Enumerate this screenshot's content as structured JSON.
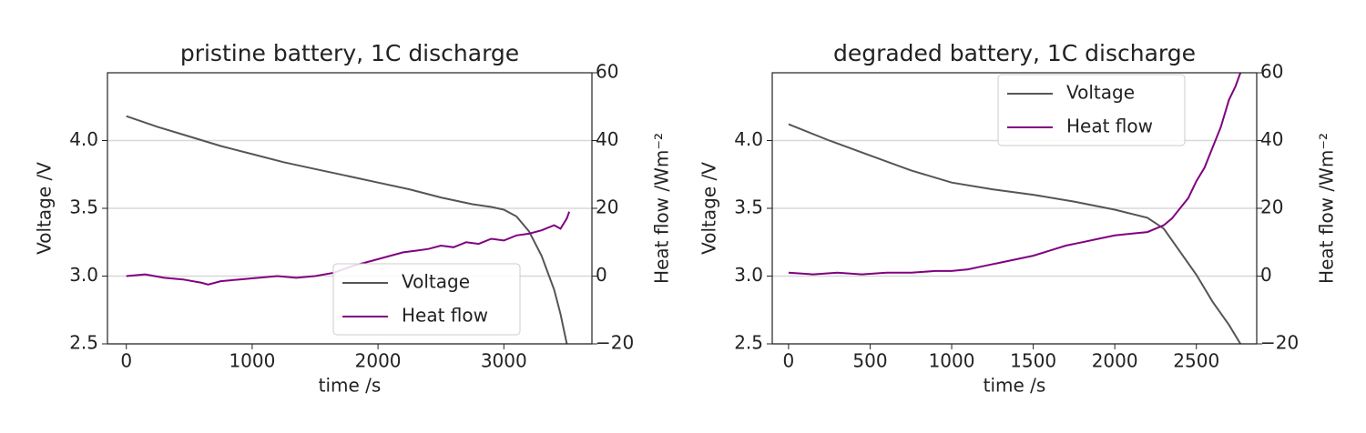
{
  "chart_data": [
    {
      "type": "line",
      "title": "pristine battery, 1C discharge",
      "x_label": "time /s",
      "y_label": "Voltage /V",
      "y2_label": "Heat flow /Wm⁻²",
      "xlim": [
        -150,
        3700
      ],
      "xticks": [
        0,
        1000,
        2000,
        3000
      ],
      "ylim": [
        2.5,
        4.5
      ],
      "yticks": [
        2.5,
        {
          "value": 3,
          "label": "3.0"
        },
        3.5,
        {
          "value": 4,
          "label": "4.0"
        }
      ],
      "y2lim": [
        -20,
        60
      ],
      "y2ticks": [
        {
          "value": -20,
          "label": "−20"
        },
        0,
        20,
        40,
        60
      ],
      "grid": true,
      "legend": "lower right",
      "series": [
        {
          "name": "Voltage",
          "color": "#555555",
          "x": [
            0,
            250,
            500,
            750,
            1000,
            1250,
            1500,
            1750,
            2000,
            2250,
            2500,
            2750,
            2900,
            3000,
            3100,
            3200,
            3300,
            3400,
            3450,
            3500
          ],
          "values": [
            4.18,
            4.1,
            4.03,
            3.96,
            3.9,
            3.84,
            3.79,
            3.74,
            3.69,
            3.64,
            3.58,
            3.53,
            3.51,
            3.49,
            3.44,
            3.33,
            3.15,
            2.9,
            2.72,
            2.5
          ]
        },
        {
          "name": "Heat flow",
          "color": "#800080",
          "axis": "y2",
          "x": [
            0,
            150,
            300,
            450,
            600,
            650,
            750,
            900,
            1050,
            1200,
            1350,
            1500,
            1650,
            1800,
            1900,
            2000,
            2100,
            2200,
            2300,
            2400,
            2500,
            2600,
            2700,
            2800,
            2900,
            3000,
            3100,
            3200,
            3300,
            3400,
            3450,
            3500,
            3520
          ],
          "values": [
            0,
            0.5,
            -0.5,
            -1,
            -2,
            -2.5,
            -1.5,
            -1,
            -0.5,
            0,
            -0.5,
            0,
            1,
            3,
            4,
            5,
            6,
            7,
            7.5,
            8,
            9,
            8.5,
            10,
            9.5,
            11,
            10.5,
            12,
            12.5,
            13.5,
            15,
            14,
            17,
            19
          ]
        }
      ]
    },
    {
      "type": "line",
      "title": "degraded battery, 1C discharge",
      "x_label": "time /s",
      "y_label": "Voltage /V",
      "y2_label": "Heat flow /Wm⁻²",
      "xlim": [
        -100,
        2870
      ],
      "xticks": [
        0,
        500,
        1000,
        1500,
        2000,
        2500
      ],
      "ylim": [
        2.5,
        4.5
      ],
      "yticks": [
        2.5,
        {
          "value": 3,
          "label": "3.0"
        },
        3.5,
        {
          "value": 4,
          "label": "4.0"
        }
      ],
      "y2lim": [
        -20,
        60
      ],
      "y2ticks": [
        {
          "value": -20,
          "label": "−20"
        },
        0,
        20,
        40,
        60
      ],
      "grid": true,
      "legend": "upper right",
      "series": [
        {
          "name": "Voltage",
          "color": "#555555",
          "x": [
            0,
            250,
            500,
            750,
            1000,
            1250,
            1500,
            1750,
            2000,
            2200,
            2300,
            2400,
            2500,
            2600,
            2700,
            2770
          ],
          "values": [
            4.12,
            4.0,
            3.89,
            3.78,
            3.69,
            3.64,
            3.6,
            3.55,
            3.49,
            3.43,
            3.35,
            3.18,
            3.01,
            2.81,
            2.64,
            2.5
          ]
        },
        {
          "name": "Heat flow",
          "color": "#800080",
          "axis": "y2",
          "x": [
            0,
            150,
            300,
            450,
            600,
            750,
            900,
            1000,
            1100,
            1200,
            1300,
            1400,
            1500,
            1600,
            1700,
            1800,
            1900,
            2000,
            2100,
            2200,
            2300,
            2350,
            2400,
            2450,
            2500,
            2550,
            2600,
            2650,
            2700,
            2740,
            2770
          ],
          "values": [
            1,
            0.5,
            1,
            0.5,
            1,
            1,
            1.5,
            1.5,
            2,
            3,
            4,
            5,
            6,
            7.5,
            9,
            10,
            11,
            12,
            12.5,
            13,
            15,
            17,
            20,
            23,
            28,
            32,
            38,
            44,
            52,
            56,
            60
          ]
        }
      ]
    }
  ]
}
